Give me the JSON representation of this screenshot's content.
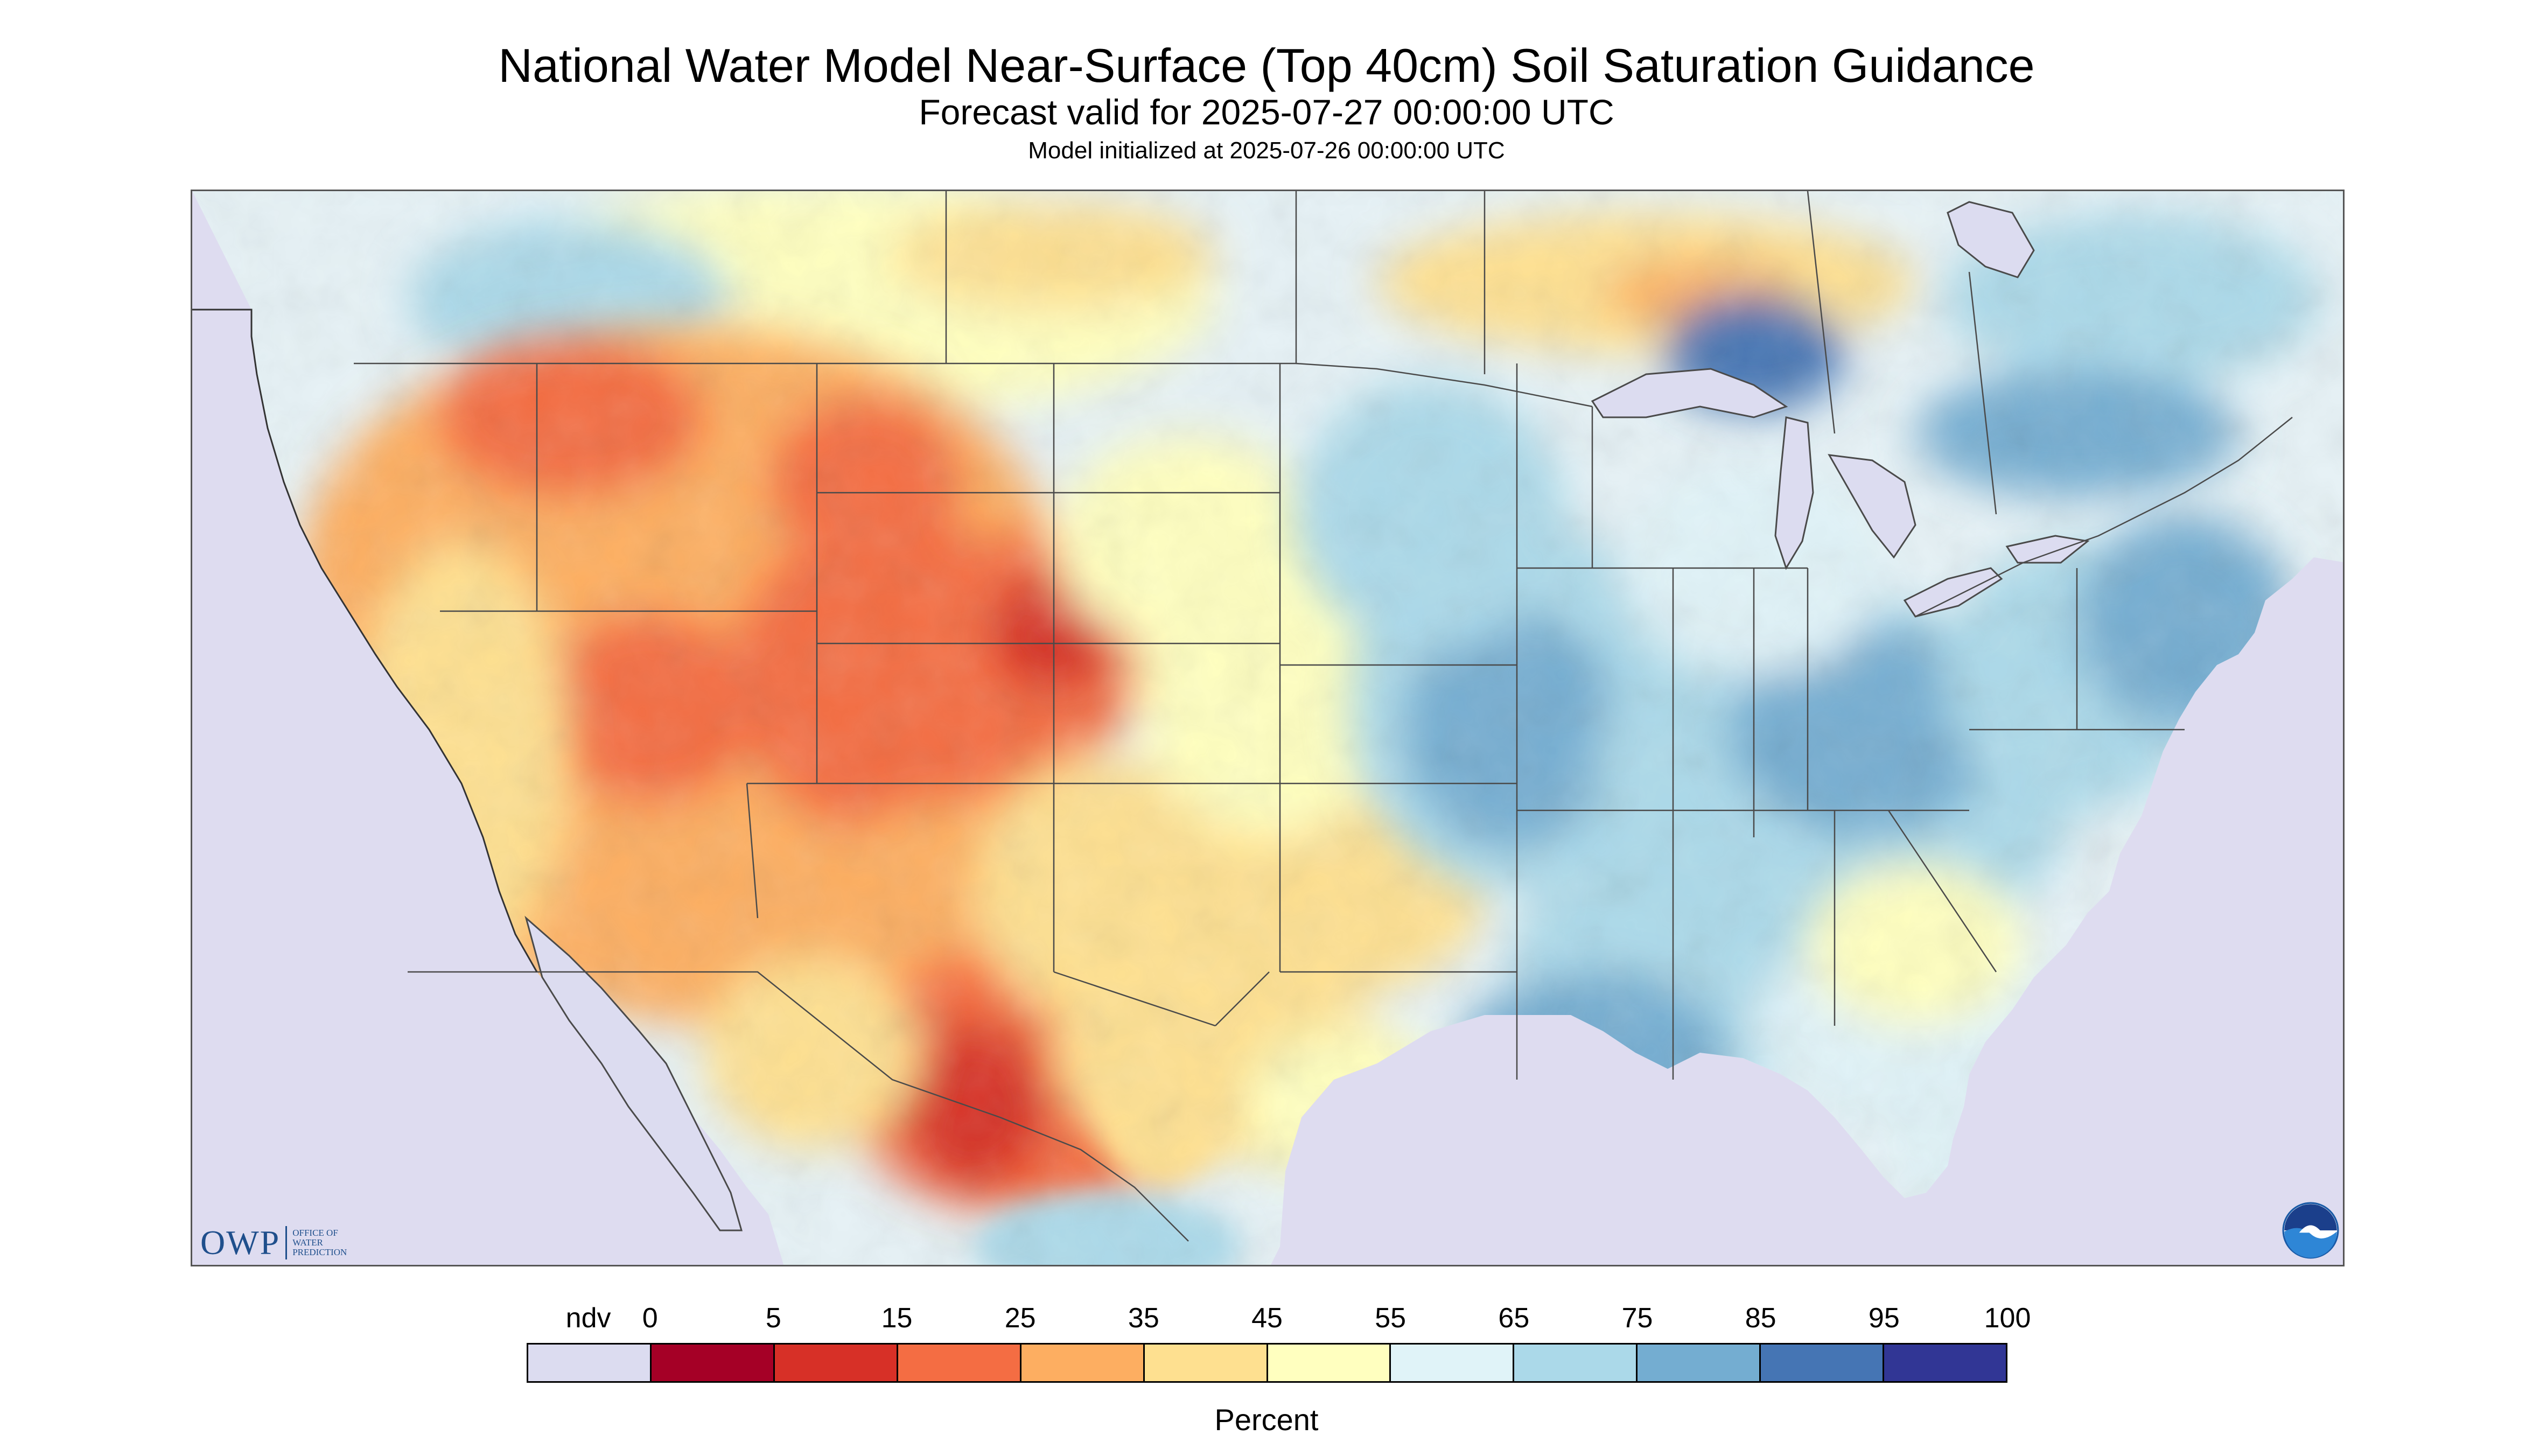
{
  "header": {
    "title": "National Water Model Near-Surface (Top 40cm) Soil Saturation Guidance",
    "subtitle": "Forecast valid for 2025-07-27 00:00:00 UTC",
    "init_line": "Model initialized at 2025-07-26 00:00:00 UTC"
  },
  "legend": {
    "unit": "Percent",
    "labels": [
      "ndv",
      "0",
      "5",
      "15",
      "25",
      "35",
      "45",
      "55",
      "65",
      "75",
      "85",
      "95",
      "100"
    ],
    "colors": [
      "#dcdcf0",
      "#a50026",
      "#d73027",
      "#f46d43",
      "#fdae61",
      "#fee090",
      "#ffffbf",
      "#e0f3f8",
      "#abd9e9",
      "#74add1",
      "#4575b4",
      "#313695"
    ]
  },
  "logos": {
    "owp_big": "OWP",
    "owp_small_1": "Office of",
    "owp_small_2": "Water",
    "owp_small_3": "Prediction",
    "noaa": "NOAA"
  },
  "map": {
    "no_data_color": "#dedcf0",
    "water_color": "#dcdcf0",
    "border_color": "#4a4a4a"
  }
}
